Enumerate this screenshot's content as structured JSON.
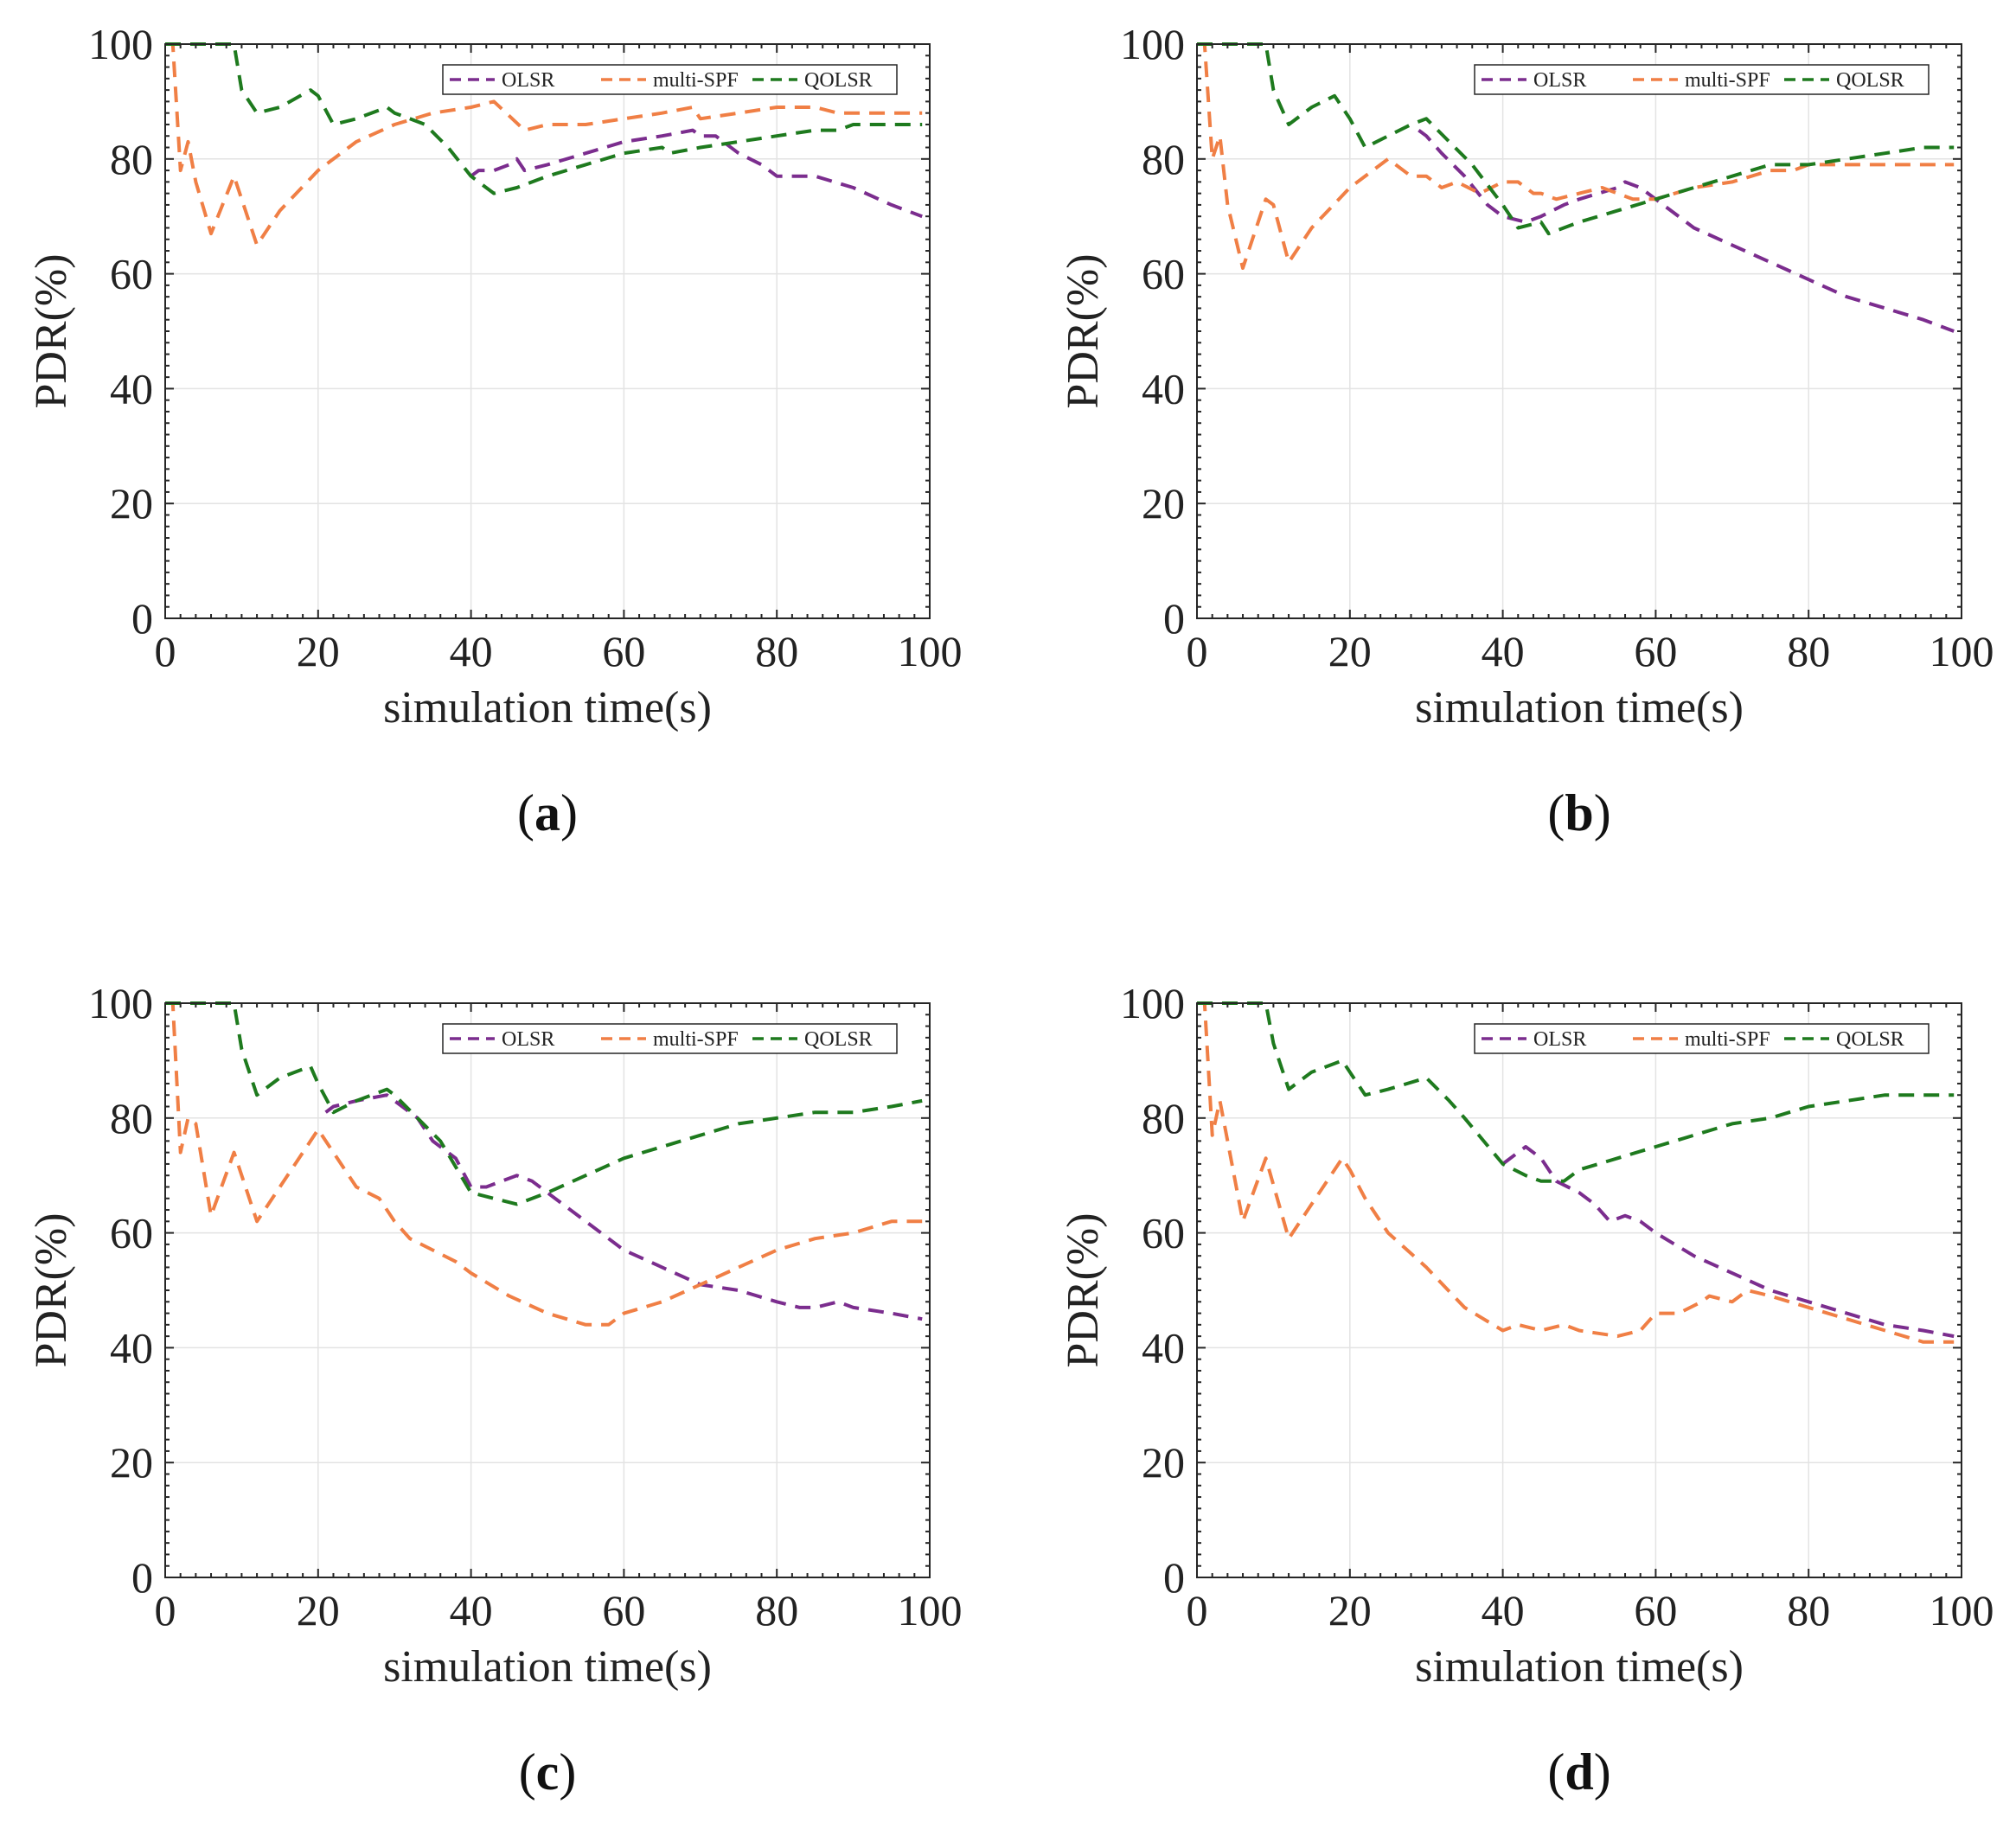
{
  "figure": {
    "colors": {
      "OLSR": "#7b2d8e",
      "multi-SPF": "#f07f45",
      "QOLSR": "#1e7a1e"
    }
  },
  "chart_data": [
    {
      "panel": "(a)",
      "type": "line",
      "xlabel": "simulation time(s)",
      "ylabel": "PDR(%)",
      "xlim": [
        0,
        100
      ],
      "ylim": [
        0,
        100
      ],
      "xticks": [
        0,
        20,
        40,
        60,
        80,
        100
      ],
      "yticks": [
        0,
        20,
        40,
        60,
        80,
        100
      ],
      "grid": true,
      "legend_position": "top-right",
      "series": [
        {
          "name": "OLSR",
          "color": "#7b2d8e",
          "x": [
            40,
            41,
            43,
            45,
            46,
            47,
            50,
            55,
            60,
            65,
            69,
            70,
            72,
            75,
            78,
            80,
            82,
            85,
            90,
            95,
            99
          ],
          "y": [
            77,
            78,
            78,
            79,
            80,
            78,
            79,
            81,
            83,
            84,
            85,
            84,
            84,
            81,
            79,
            77,
            77,
            77,
            75,
            72,
            70
          ]
        },
        {
          "name": "multi-SPF",
          "color": "#f07f45",
          "x": [
            0,
            1,
            2,
            3,
            4,
            6,
            9,
            12,
            15,
            20,
            25,
            30,
            35,
            40,
            43,
            47,
            50,
            55,
            60,
            65,
            69,
            70,
            75,
            80,
            85,
            88,
            90,
            95,
            99
          ],
          "y": [
            100,
            100,
            78,
            83,
            76,
            67,
            77,
            65,
            71,
            78,
            83,
            86,
            88,
            89,
            90,
            85,
            86,
            86,
            87,
            88,
            89,
            87,
            88,
            89,
            89,
            88,
            88,
            88,
            88
          ]
        },
        {
          "name": "QOLSR",
          "color": "#1e7a1e",
          "x": [
            0,
            5,
            9,
            10,
            12,
            15,
            19,
            20,
            22,
            25,
            29,
            30,
            32,
            34,
            37,
            40,
            41,
            43,
            46,
            50,
            55,
            60,
            65,
            66,
            70,
            75,
            80,
            85,
            88,
            90,
            95,
            99
          ],
          "y": [
            100,
            100,
            100,
            92,
            88,
            89,
            92,
            91,
            86,
            87,
            89,
            88,
            87,
            86,
            82,
            77,
            76,
            74,
            75,
            77,
            79,
            81,
            82,
            81,
            82,
            83,
            84,
            85,
            85,
            86,
            86,
            86
          ]
        }
      ]
    },
    {
      "panel": "(b)",
      "type": "line",
      "xlabel": "simulation time(s)",
      "ylabel": "PDR(%)",
      "xlim": [
        0,
        100
      ],
      "ylim": [
        0,
        100
      ],
      "xticks": [
        0,
        20,
        40,
        60,
        80,
        100
      ],
      "yticks": [
        0,
        20,
        40,
        60,
        80,
        100
      ],
      "grid": true,
      "legend_position": "top-right",
      "series": [
        {
          "name": "OLSR",
          "color": "#7b2d8e",
          "x": [
            29,
            30,
            32,
            35,
            38,
            40,
            43,
            45,
            48,
            50,
            55,
            56,
            58,
            60,
            65,
            70,
            75,
            80,
            85,
            90,
            95,
            99
          ],
          "y": [
            85,
            84,
            81,
            77,
            72,
            70,
            69,
            70,
            72,
            73,
            75,
            76,
            75,
            73,
            68,
            65,
            62,
            59,
            56,
            54,
            52,
            50
          ]
        },
        {
          "name": "multi-SPF",
          "color": "#f07f45",
          "x": [
            0,
            1,
            2,
            3,
            4,
            6,
            9,
            10,
            12,
            15,
            20,
            25,
            28,
            30,
            32,
            34,
            37,
            40,
            42,
            44,
            45,
            47,
            50,
            53,
            55,
            57,
            60,
            65,
            70,
            75,
            78,
            80,
            85,
            90,
            95,
            99
          ],
          "y": [
            100,
            100,
            80,
            84,
            72,
            61,
            73,
            72,
            62,
            68,
            75,
            80,
            77,
            77,
            75,
            76,
            74,
            76,
            76,
            74,
            74,
            73,
            74,
            75,
            74,
            73,
            73,
            75,
            76,
            78,
            78,
            79,
            79,
            79,
            79,
            79
          ]
        },
        {
          "name": "QOLSR",
          "color": "#1e7a1e",
          "x": [
            0,
            5,
            9,
            10,
            12,
            15,
            18,
            20,
            22,
            25,
            28,
            30,
            33,
            36,
            40,
            42,
            45,
            46,
            50,
            55,
            60,
            65,
            70,
            75,
            78,
            80,
            85,
            90,
            95,
            99
          ],
          "y": [
            100,
            100,
            100,
            92,
            86,
            89,
            91,
            87,
            82,
            84,
            86,
            87,
            83,
            79,
            72,
            68,
            69,
            67,
            69,
            71,
            73,
            75,
            77,
            79,
            79,
            79,
            80,
            81,
            82,
            82
          ]
        }
      ]
    },
    {
      "panel": "(c)",
      "type": "line",
      "xlabel": "simulation time(s)",
      "ylabel": "PDR(%)",
      "xlim": [
        0,
        100
      ],
      "ylim": [
        0,
        100
      ],
      "xticks": [
        0,
        20,
        40,
        60,
        80,
        100
      ],
      "yticks": [
        0,
        20,
        40,
        60,
        80,
        100
      ],
      "grid": true,
      "legend_position": "top-right",
      "series": [
        {
          "name": "OLSR",
          "color": "#7b2d8e",
          "x": [
            21,
            22,
            25,
            29,
            30,
            33,
            35,
            38,
            40,
            42,
            44,
            46,
            48,
            50,
            55,
            60,
            65,
            70,
            75,
            80,
            83,
            85,
            88,
            90,
            95,
            99
          ],
          "y": [
            81,
            82,
            83,
            84,
            83,
            80,
            76,
            73,
            68,
            68,
            69,
            70,
            69,
            67,
            62,
            57,
            54,
            51,
            50,
            48,
            47,
            47,
            48,
            47,
            46,
            45
          ]
        },
        {
          "name": "multi-SPF",
          "color": "#f07f45",
          "x": [
            0,
            1,
            2,
            3,
            4,
            6,
            9,
            12,
            15,
            19,
            20,
            22,
            25,
            28,
            30,
            32,
            35,
            38,
            40,
            45,
            50,
            55,
            58,
            60,
            65,
            70,
            75,
            80,
            85,
            90,
            95,
            99
          ],
          "y": [
            100,
            100,
            74,
            80,
            79,
            63,
            74,
            62,
            68,
            76,
            78,
            74,
            68,
            66,
            62,
            59,
            57,
            55,
            53,
            49,
            46,
            44,
            44,
            46,
            48,
            51,
            54,
            57,
            59,
            60,
            62,
            62
          ]
        },
        {
          "name": "QOLSR",
          "color": "#1e7a1e",
          "x": [
            0,
            5,
            9,
            10,
            12,
            15,
            19,
            20,
            22,
            25,
            29,
            30,
            33,
            36,
            40,
            43,
            46,
            50,
            55,
            60,
            65,
            70,
            75,
            80,
            85,
            90,
            95,
            99
          ],
          "y": [
            100,
            100,
            100,
            92,
            84,
            87,
            89,
            86,
            81,
            83,
            85,
            84,
            80,
            76,
            67,
            66,
            65,
            67,
            70,
            73,
            75,
            77,
            79,
            80,
            81,
            81,
            82,
            83
          ]
        }
      ]
    },
    {
      "panel": "(d)",
      "type": "line",
      "xlabel": "simulation time(s)",
      "ylabel": "PDR(%)",
      "xlim": [
        0,
        100
      ],
      "ylim": [
        0,
        100
      ],
      "xticks": [
        0,
        20,
        40,
        60,
        80,
        100
      ],
      "yticks": [
        0,
        20,
        40,
        60,
        80,
        100
      ],
      "grid": true,
      "legend_position": "top-right",
      "series": [
        {
          "name": "OLSR",
          "color": "#7b2d8e",
          "x": [
            40,
            42,
            43,
            45,
            47,
            50,
            52,
            54,
            56,
            58,
            60,
            65,
            70,
            75,
            80,
            85,
            90,
            95,
            99
          ],
          "y": [
            72,
            74,
            75,
            73,
            69,
            67,
            65,
            62,
            63,
            62,
            60,
            56,
            53,
            50,
            48,
            46,
            44,
            43,
            42
          ]
        },
        {
          "name": "multi-SPF",
          "color": "#f07f45",
          "x": [
            0,
            1,
            2,
            3,
            4,
            6,
            9,
            12,
            15,
            19,
            20,
            22,
            25,
            30,
            35,
            40,
            42,
            45,
            48,
            50,
            55,
            58,
            60,
            63,
            66,
            67,
            70,
            72,
            75,
            80,
            85,
            90,
            95,
            99
          ],
          "y": [
            100,
            100,
            77,
            83,
            76,
            62,
            73,
            59,
            65,
            73,
            71,
            66,
            60,
            54,
            47,
            43,
            44,
            43,
            44,
            43,
            42,
            43,
            46,
            46,
            48,
            49,
            48,
            50,
            49,
            47,
            45,
            43,
            41,
            41
          ]
        },
        {
          "name": "QOLSR",
          "color": "#1e7a1e",
          "x": [
            0,
            5,
            9,
            10,
            12,
            15,
            19,
            20,
            22,
            25,
            30,
            33,
            35,
            40,
            43,
            45,
            48,
            50,
            55,
            60,
            65,
            70,
            75,
            80,
            85,
            90,
            95,
            99
          ],
          "y": [
            100,
            100,
            100,
            93,
            85,
            88,
            90,
            88,
            84,
            85,
            87,
            83,
            80,
            72,
            70,
            69,
            69,
            71,
            73,
            75,
            77,
            79,
            80,
            82,
            83,
            84,
            84,
            84
          ]
        }
      ]
    }
  ]
}
